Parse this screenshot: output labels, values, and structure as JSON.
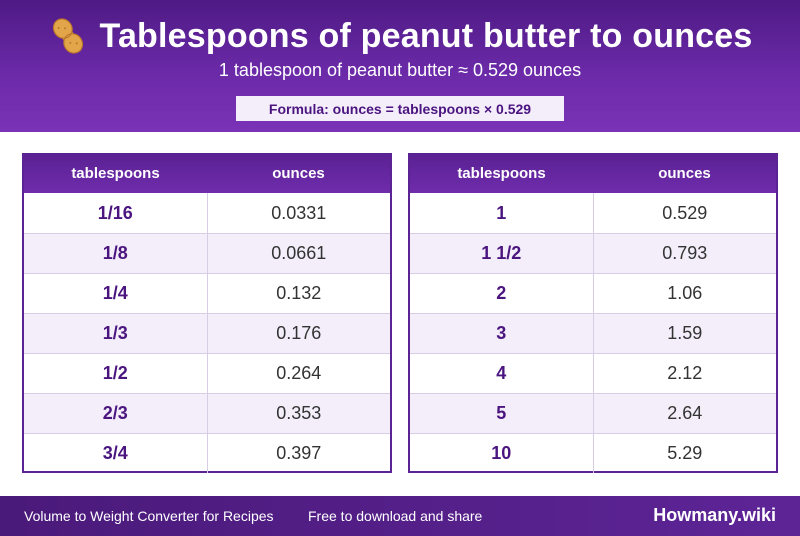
{
  "header": {
    "title": "Tablespoons of peanut butter to ounces",
    "subtitle": "1 tablespoon of peanut butter ≈ 0.529 ounces",
    "formula": "Formula: ounces = tablespoons × 0.529",
    "icon": "peanut-icon"
  },
  "tables": [
    {
      "headers": [
        "tablespoons",
        "ounces"
      ],
      "rows": [
        [
          "1/16",
          "0.0331"
        ],
        [
          "1/8",
          "0.0661"
        ],
        [
          "1/4",
          "0.132"
        ],
        [
          "1/3",
          "0.176"
        ],
        [
          "1/2",
          "0.264"
        ],
        [
          "2/3",
          "0.353"
        ],
        [
          "3/4",
          "0.397"
        ]
      ]
    },
    {
      "headers": [
        "tablespoons",
        "ounces"
      ],
      "rows": [
        [
          "1",
          "0.529"
        ],
        [
          "1 1/2",
          "0.793"
        ],
        [
          "2",
          "1.06"
        ],
        [
          "3",
          "1.59"
        ],
        [
          "4",
          "2.12"
        ],
        [
          "5",
          "2.64"
        ],
        [
          "10",
          "5.29"
        ]
      ]
    }
  ],
  "footer": {
    "left_text": "Volume to Weight Converter for Recipes",
    "middle_text": "Free to download and share",
    "brand": "Howmany.wiki"
  },
  "colors": {
    "primary": "#5b2394",
    "accent_text": "#4b1580",
    "alt_row": "#f3eefa"
  }
}
